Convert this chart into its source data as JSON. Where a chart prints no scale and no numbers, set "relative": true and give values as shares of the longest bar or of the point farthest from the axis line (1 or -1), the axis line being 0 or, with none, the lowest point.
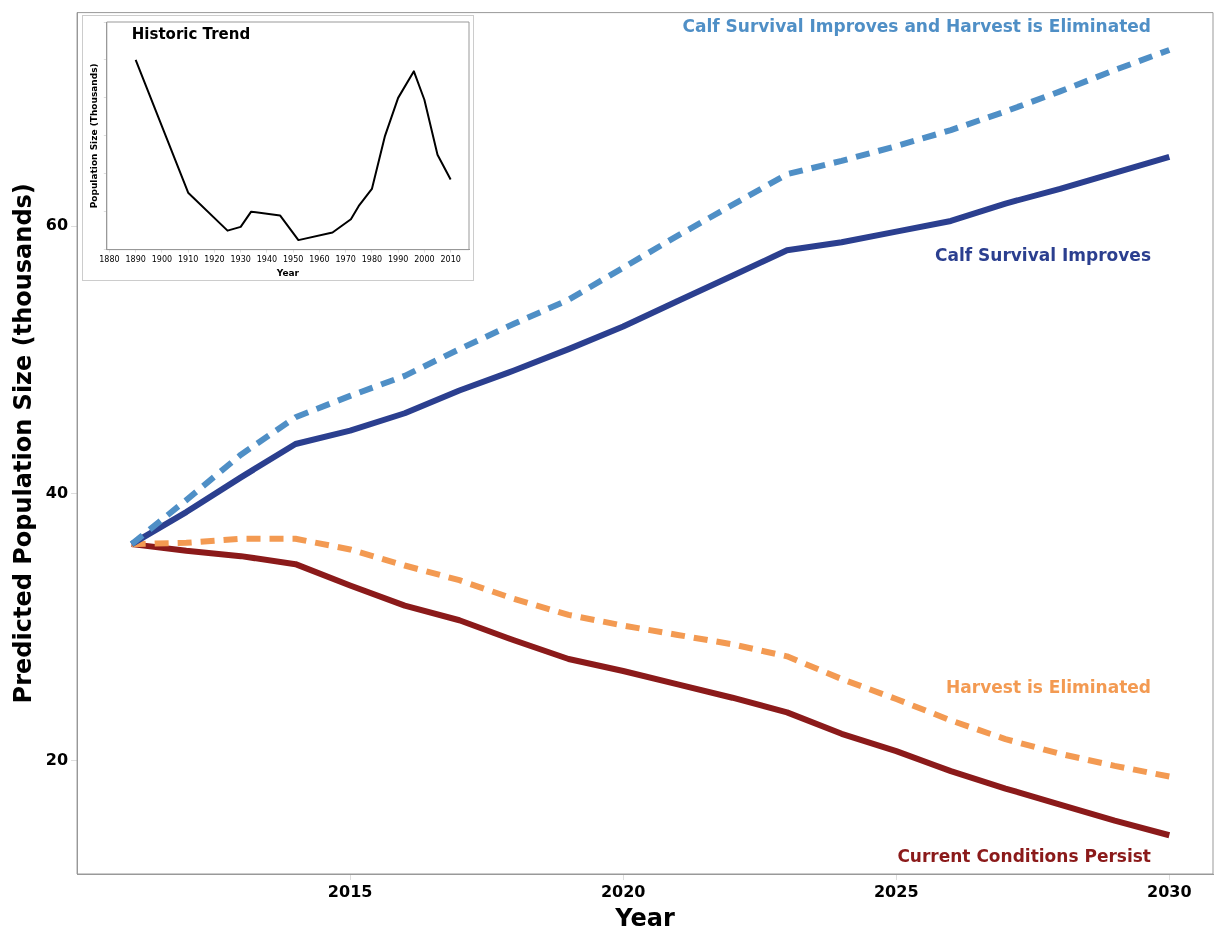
{
  "chart_data": [
    {
      "type": "line",
      "ylabel": "Predicted Population Size (thousands)",
      "xlabel": "Year",
      "xlim": [
        2010,
        2030.8
      ],
      "xticks": [
        2015,
        2020,
        2025,
        2030
      ],
      "ylim": [
        11.5,
        76
      ],
      "yticks": [
        20,
        40,
        60
      ],
      "grid": false,
      "marker": "none",
      "x": [
        2011,
        2012,
        2013,
        2014,
        2015,
        2016,
        2017,
        2018,
        2019,
        2020,
        2021,
        2022,
        2023,
        2024,
        2025,
        2026,
        2027,
        2028,
        2029,
        2030
      ],
      "series": [
        {
          "name": "Calf Survival Improves and Harvest is Eliminated",
          "color": "#4f8fc6",
          "line_style": "dashed",
          "values": [
            36.2,
            39.5,
            42.9,
            45.7,
            47.3,
            48.8,
            50.8,
            52.7,
            54.5,
            56.9,
            59.3,
            61.6,
            63.9,
            64.9,
            66.0,
            67.2,
            68.6,
            70.1,
            71.7,
            73.2
          ]
        },
        {
          "name": "Calf Survival Improves",
          "color": "#2b3f8f",
          "line_style": "solid",
          "values": [
            36.2,
            38.6,
            41.2,
            43.7,
            44.7,
            46.0,
            47.7,
            49.2,
            50.8,
            52.5,
            54.4,
            56.3,
            58.2,
            58.8,
            59.6,
            60.4,
            61.7,
            62.8,
            64.0,
            65.2
          ]
        },
        {
          "name": "Harvest is Eliminated",
          "color": "#f39a52",
          "line_style": "dashed",
          "values": [
            36.2,
            36.3,
            36.6,
            36.6,
            35.8,
            34.6,
            33.5,
            32.1,
            30.9,
            30.1,
            29.4,
            28.7,
            27.8,
            26.1,
            24.6,
            23.0,
            21.6,
            20.5,
            19.6,
            18.8
          ]
        },
        {
          "name": "Current Conditions Persist",
          "color": "#8b1a1a",
          "line_style": "solid",
          "values": [
            36.2,
            35.7,
            35.3,
            34.7,
            33.1,
            31.6,
            30.5,
            29.0,
            27.6,
            26.7,
            25.7,
            24.7,
            23.6,
            22.0,
            20.7,
            19.2,
            17.9,
            16.7,
            15.5,
            14.4
          ]
        }
      ]
    },
    {
      "type": "line",
      "title": "Historic Trend",
      "xlabel": "Year",
      "ylabel": "Population Size (Thousands)",
      "relative": true,
      "tick_labels": "x",
      "grid": false,
      "marker": "none",
      "xlim": [
        1879,
        2017
      ],
      "xticks": [
        1880,
        1890,
        1900,
        1910,
        1920,
        1930,
        1940,
        1950,
        1960,
        1970,
        1980,
        1990,
        2000,
        2010
      ],
      "x": [
        1890,
        1910,
        1925,
        1930,
        1934,
        1945,
        1952,
        1965,
        1972,
        1975,
        1980,
        1985,
        1990,
        1996,
        2000,
        2005,
        2010
      ],
      "series": [
        {
          "color": "#000000",
          "line_style": "solid",
          "values": [
            1.0,
            0.3,
            0.1,
            0.12,
            0.2,
            0.18,
            0.05,
            0.09,
            0.16,
            0.23,
            0.32,
            0.6,
            0.8,
            0.94,
            0.79,
            0.5,
            0.37
          ]
        }
      ]
    }
  ]
}
